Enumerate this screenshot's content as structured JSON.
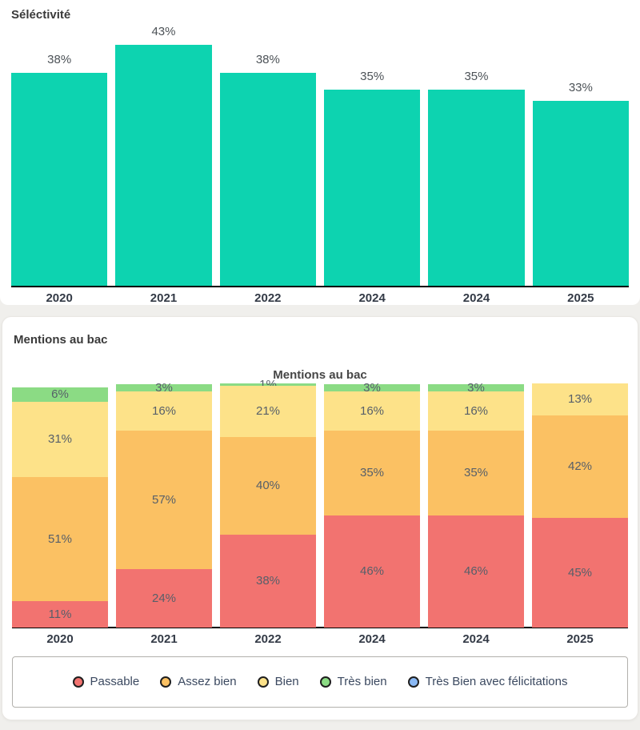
{
  "page": {
    "background": "#f0efec"
  },
  "selectivity_section": {
    "header": "Séléctivité"
  },
  "mentions_section": {
    "header": "Mentions au bac"
  },
  "chart_data": [
    {
      "type": "bar",
      "title": "Séléctivité",
      "categories": [
        "2020",
        "2021",
        "2022",
        "2024",
        "2024",
        "2025"
      ],
      "values": [
        38,
        43,
        38,
        35,
        35,
        33
      ],
      "value_labels": [
        "38%",
        "43%",
        "38%",
        "35%",
        "35%",
        "33%"
      ],
      "unit": "%",
      "bar_color": "#0dd3b0",
      "xlabel": "",
      "ylabel": "",
      "ylim": [
        0,
        45
      ],
      "grid": false,
      "legend_position": "none"
    },
    {
      "type": "stacked-bar",
      "title": "Mentions au bac",
      "categories": [
        "2020",
        "2021",
        "2022",
        "2024",
        "2024",
        "2025"
      ],
      "series": [
        {
          "name": "Passable",
          "color": "#f27370",
          "values": [
            11,
            24,
            38,
            46,
            46,
            45
          ]
        },
        {
          "name": "Assez bien",
          "color": "#fbc163",
          "values": [
            51,
            57,
            40,
            35,
            35,
            42
          ]
        },
        {
          "name": "Bien",
          "color": "#fde289",
          "values": [
            31,
            16,
            21,
            16,
            16,
            13
          ]
        },
        {
          "name": "Très bien",
          "color": "#8bdb84",
          "values": [
            6,
            3,
            1,
            3,
            3,
            0
          ]
        },
        {
          "name": "Très Bien avec félicitations",
          "color": "#8ab9f5",
          "values": [
            0,
            0,
            0,
            0,
            0,
            0
          ]
        }
      ],
      "unit": "%",
      "label_color": "#575f69",
      "xlabel": "",
      "ylabel": "",
      "ylim": [
        0,
        100
      ],
      "grid": false,
      "legend_position": "bottom",
      "legend": [
        "Passable",
        "Assez bien",
        "Bien",
        "Très bien",
        "Très Bien avec félicitations"
      ]
    }
  ]
}
